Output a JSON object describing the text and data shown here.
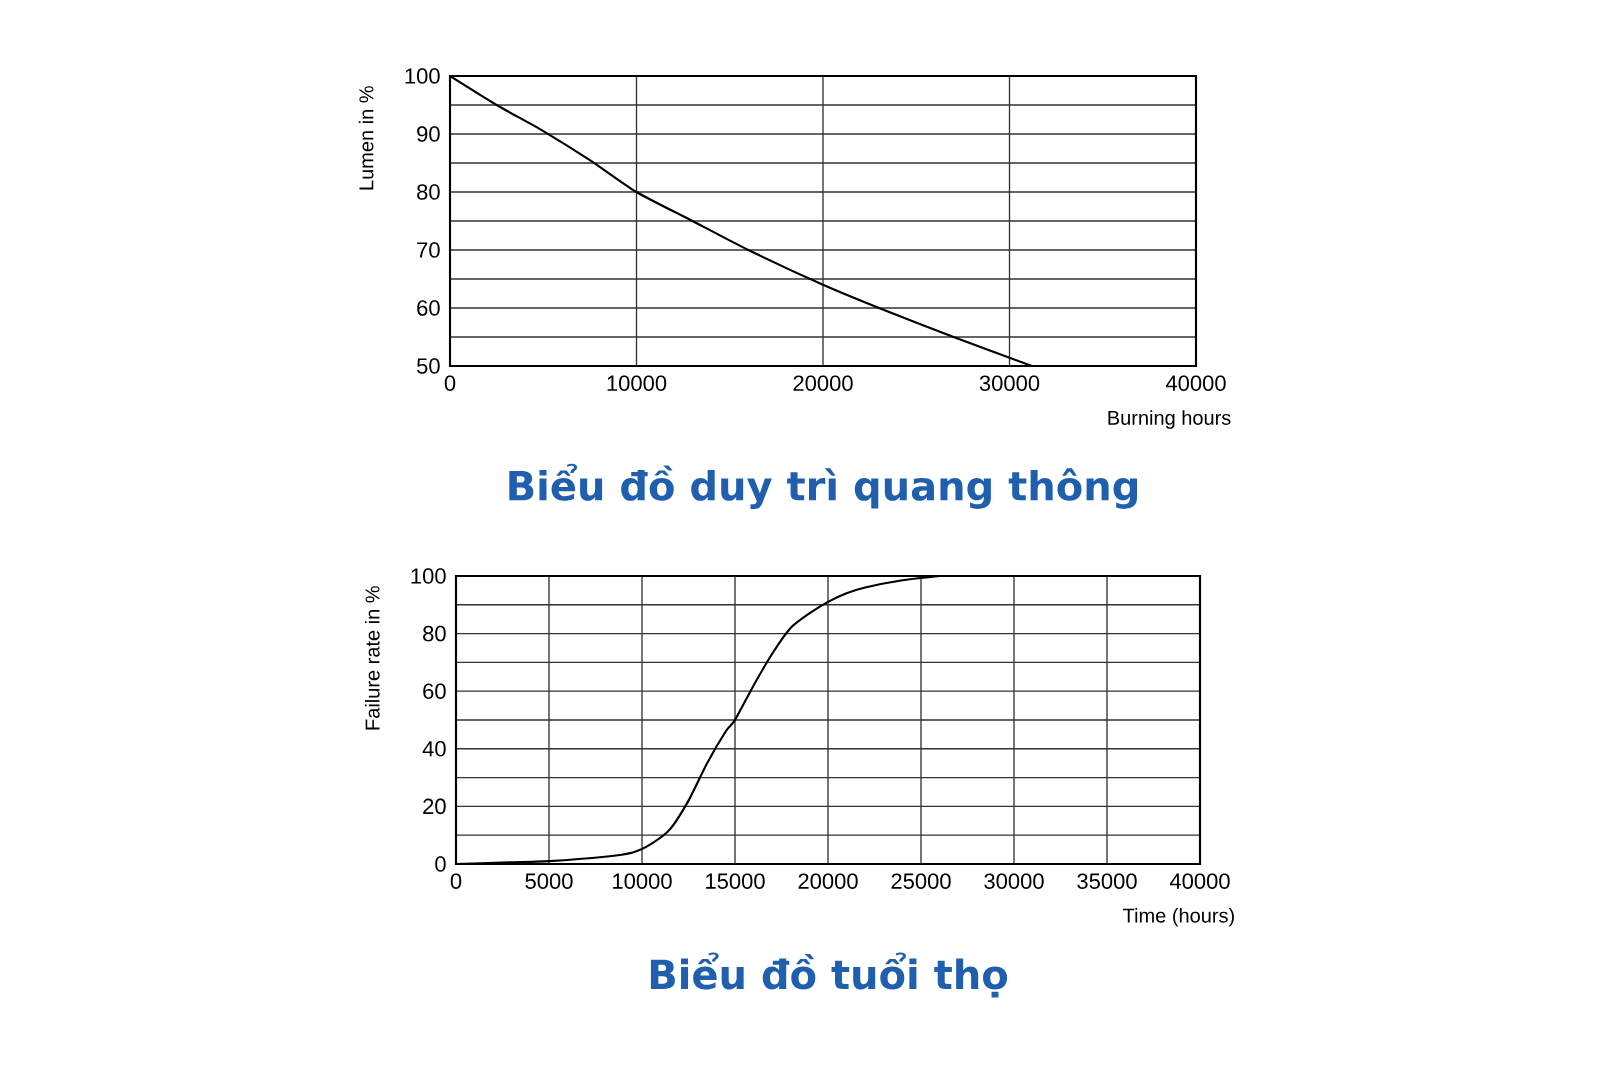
{
  "chart_data": [
    {
      "type": "line",
      "title": "Biểu đồ duy trì quang thông",
      "xlabel": "Burning hours",
      "ylabel": "Lumen in %",
      "xlim": [
        0,
        40000
      ],
      "ylim": [
        50,
        100
      ],
      "xticks": [
        0,
        10000,
        20000,
        30000,
        40000
      ],
      "yticks": [
        50,
        {
          "value": 55,
          "label": null
        },
        60,
        {
          "value": 65,
          "label": null
        },
        70,
        {
          "value": 75,
          "label": null
        },
        80,
        {
          "value": 85,
          "label": null
        },
        90,
        {
          "value": 95,
          "label": null
        },
        100
      ],
      "grid": true,
      "series": [
        {
          "color": "#000000",
          "x": [
            0,
            2500,
            5000,
            7500,
            10000,
            13000,
            16000,
            20000,
            23000,
            27000,
            31200
          ],
          "values": [
            100,
            95,
            90.5,
            85.5,
            80,
            75,
            70,
            64,
            60,
            55,
            50
          ]
        }
      ]
    },
    {
      "type": "line",
      "title": "Biểu đồ tuổi thọ",
      "xlabel": "Time (hours)",
      "ylabel": "Failure rate in %",
      "xlim": [
        0,
        40000
      ],
      "ylim": [
        0,
        100
      ],
      "xticks": [
        0,
        5000,
        10000,
        15000,
        20000,
        25000,
        30000,
        35000,
        40000
      ],
      "yticks": [
        0,
        {
          "value": 10,
          "label": null
        },
        20,
        {
          "value": 30,
          "label": null
        },
        40,
        {
          "value": 50,
          "label": null
        },
        60,
        {
          "value": 70,
          "label": null
        },
        80,
        {
          "value": 90,
          "label": null
        },
        100
      ],
      "grid": true,
      "series": [
        {
          "color": "#000000",
          "x": [
            0,
            2500,
            5000,
            8000,
            9500,
            10500,
            11500,
            12500,
            13500,
            14500,
            15000,
            16000,
            17000,
            18000,
            19000,
            20000,
            21000,
            22000,
            24000,
            26000
          ],
          "values": [
            0,
            0.5,
            1,
            2.5,
            4,
            7,
            12,
            22,
            35,
            46,
            50,
            62,
            73,
            82,
            87,
            91,
            94,
            96,
            98.5,
            100
          ]
        }
      ]
    }
  ]
}
